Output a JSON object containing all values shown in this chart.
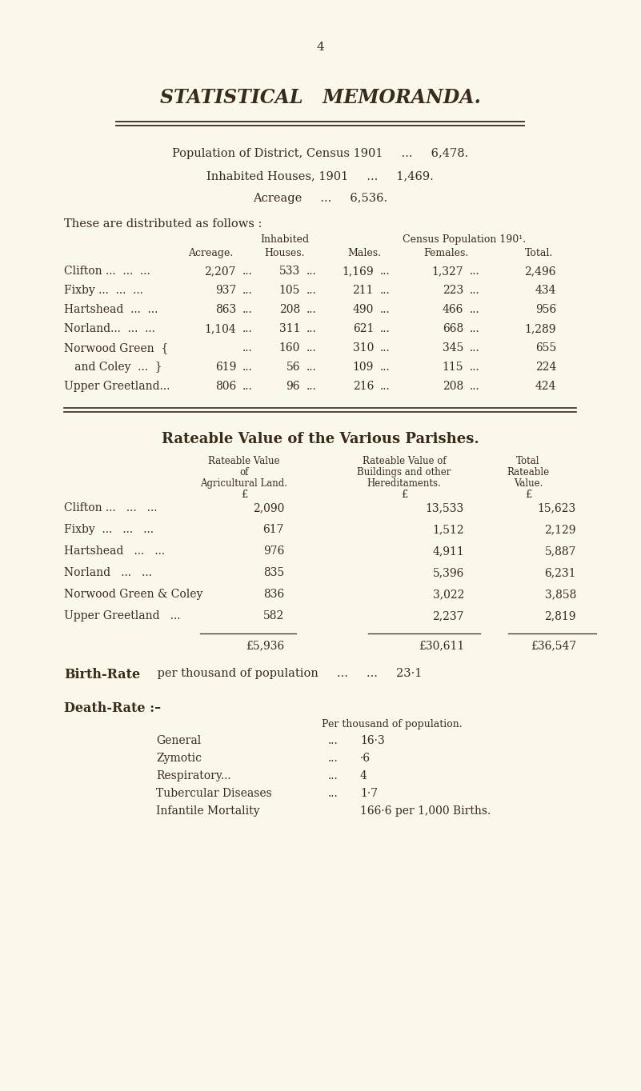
{
  "bg_color": "#faf8eb",
  "text_color": "#3a2a1a",
  "page_number": "4",
  "title": "STATISTICAL   MEMORANDA.",
  "summary_line1": "Population of District, Census 1901     ...     6,478.",
  "summary_line2": "Inhabited Houses, 1901     ...     1,469.",
  "summary_line3": "Acreage     ...     6,536.",
  "distributed_header": "These are distributed as follows :",
  "table1_rows": [
    [
      "Clifton ...  ...  ...",
      "2,207",
      "533",
      "1,169",
      "1,327",
      "2,496"
    ],
    [
      "Fixby ...  ...  ...",
      "937",
      "105",
      "211",
      "223",
      "434"
    ],
    [
      "Hartshead  ...  ...",
      "863",
      "208",
      "490",
      "466",
      "956"
    ],
    [
      "Norland...  ...  ...",
      "1,104",
      "311",
      "621",
      "668",
      "1,289"
    ],
    [
      "Norwood Green  {",
      "",
      "160",
      "310",
      "345",
      "655"
    ],
    [
      "   and Coley  ...  }",
      "619",
      "56",
      "109",
      "115",
      "224"
    ],
    [
      "Upper Greetland...",
      "806",
      "96",
      "216",
      "208",
      "424"
    ]
  ],
  "rateable_title": "Rateable Value of the Various Parishes.",
  "rateable_rows": [
    [
      "Clifton ...   ...   ...",
      "2,090",
      "13,533",
      "15,623"
    ],
    [
      "Fixby  ...   ...   ...",
      "617",
      "1,512",
      "2,129"
    ],
    [
      "Hartshead   ...   ...",
      "976",
      "4,911",
      "5,887"
    ],
    [
      "Norland   ...   ...",
      "835",
      "5,396",
      "6,231"
    ],
    [
      "Norwood Green & Coley",
      "836",
      "3,022",
      "3,858"
    ],
    [
      "Upper Greetland   ...",
      "582",
      "2,237",
      "2,819"
    ]
  ],
  "rateable_totals": [
    "£5,936",
    "£30,611",
    "£36,547"
  ],
  "birth_rate_value": "23·1",
  "death_rate_rows": [
    [
      "General",
      "16·3"
    ],
    [
      "Zymotic",
      "·6"
    ],
    [
      "Respiratory...",
      "4"
    ],
    [
      "Tubercular Diseases",
      "1·7"
    ],
    [
      "Infantile Mortality",
      "166·6 per 1,000 Births."
    ]
  ]
}
